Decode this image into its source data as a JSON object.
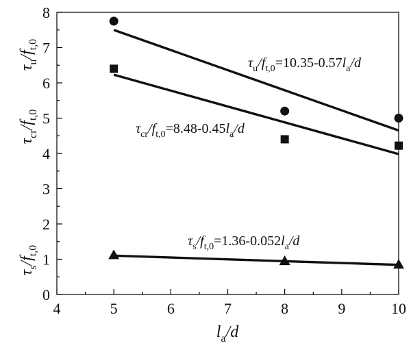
{
  "chart_data": {
    "type": "scatter",
    "x": [
      5,
      8,
      10
    ],
    "xlim": [
      4,
      10
    ],
    "ylim": [
      0,
      8
    ],
    "xticks": [
      "4",
      "5",
      "6",
      "7",
      "8",
      "9",
      "10"
    ],
    "yticks": [
      "0",
      "1",
      "2",
      "3",
      "4",
      "5",
      "6",
      "7",
      "8"
    ],
    "xlabel": {
      "l": "l",
      "a": "a",
      "rest": "/d"
    },
    "ylabels": [
      {
        "tau": "τ",
        "sub": "u",
        "f": "/f",
        "fsub": "t,0"
      },
      {
        "tau": "τ",
        "sub": "cr",
        "f": "/f",
        "fsub": "t,0"
      },
      {
        "tau": "τ",
        "sub": "s",
        "f": "/f",
        "fsub": "t,0"
      }
    ],
    "series": [
      {
        "marker": "circle",
        "values": [
          7.75,
          5.2,
          5.0
        ],
        "fit": {
          "intercept": 10.35,
          "slope": -0.57
        },
        "equation": {
          "tau": "τ",
          "sub": "u",
          "f": "/f",
          "fsub": "t,0",
          "eqtext": "=10.35-0.57",
          "l": "l",
          "lsub": "a",
          "tail": "/d"
        }
      },
      {
        "marker": "square",
        "values": [
          6.4,
          4.4,
          4.22
        ],
        "fit": {
          "intercept": 8.48,
          "slope": -0.45
        },
        "equation": {
          "tau": "τ",
          "sub": "cr",
          "f": "/f",
          "fsub": "t,0",
          "eqtext": "=8.48-0.45",
          "l": "l",
          "lsub": "a",
          "tail": "/d"
        }
      },
      {
        "marker": "triangle",
        "values": [
          1.12,
          0.95,
          0.85
        ],
        "fit": {
          "intercept": 1.36,
          "slope": -0.052
        },
        "equation": {
          "tau": "τ",
          "sub": "s",
          "f": "/f",
          "fsub": "t,0",
          "eqtext": "=1.36-0.052",
          "l": "l",
          "lsub": "a",
          "tail": "/d"
        }
      }
    ]
  }
}
